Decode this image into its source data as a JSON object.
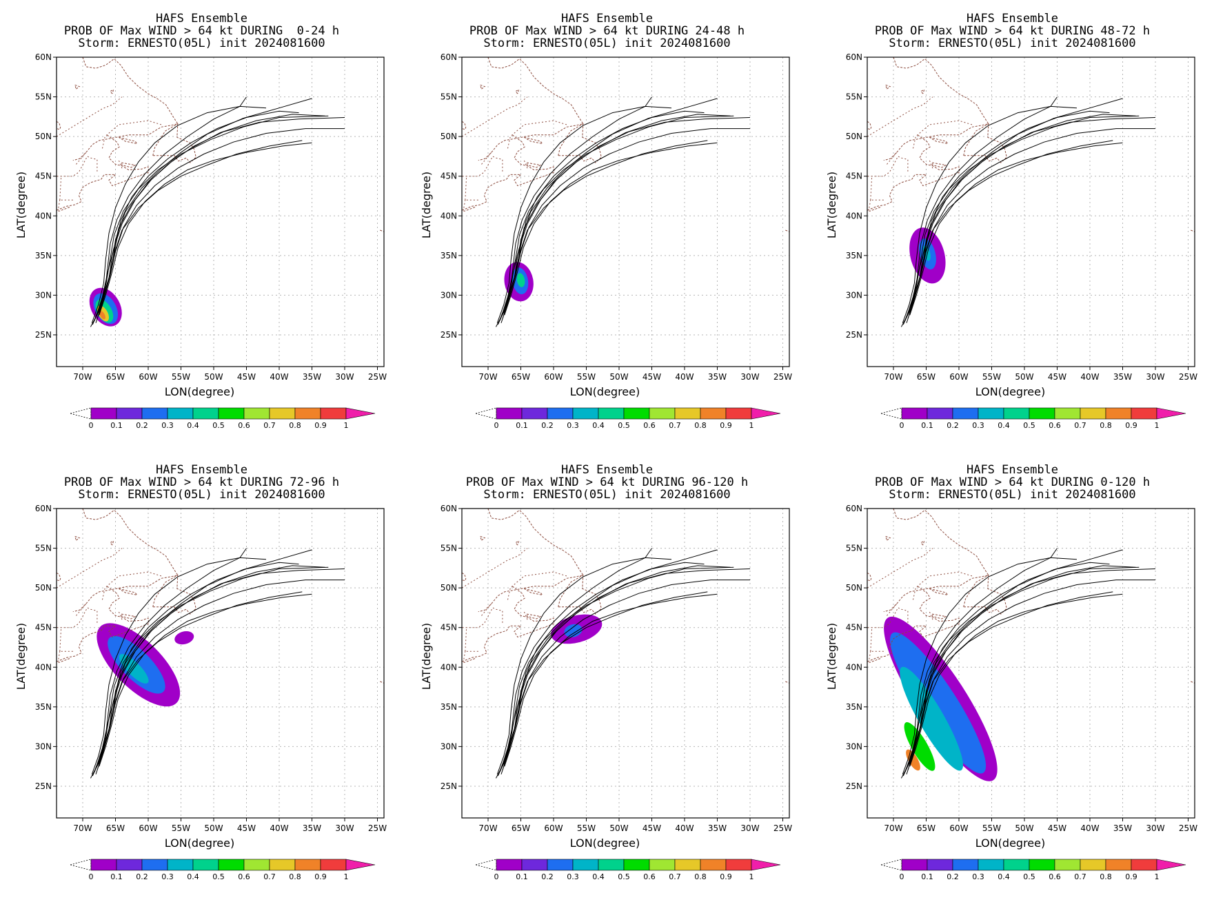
{
  "common": {
    "title_line1": "HAFS Ensemble",
    "title_line3": "Storm: ERNESTO(05L) init 2024081600",
    "xlabel": "LON(degree)",
    "ylabel": "LAT(degree)",
    "lon_ticks": [
      "70W",
      "65W",
      "60W",
      "55W",
      "50W",
      "45W",
      "40W",
      "35W",
      "30W",
      "25W"
    ],
    "lat_ticks": [
      "60N",
      "55N",
      "50N",
      "45N",
      "40N",
      "35N",
      "30N",
      "25N"
    ],
    "colorbar_ticks": [
      "0",
      "0.1",
      "0.2",
      "0.3",
      "0.4",
      "0.5",
      "0.6",
      "0.7",
      "0.8",
      "0.9",
      "1"
    ],
    "colorbar_colors": [
      "#a000c8",
      "#6e28dc",
      "#1e6ef0",
      "#00b4c8",
      "#00d28c",
      "#00dc00",
      "#a0e632",
      "#e6c828",
      "#f08228",
      "#f03c3c",
      "#f01eaa"
    ]
  },
  "panels": [
    {
      "title_line2": "PROB OF Max WIND > 64 kt DURING  0-24 h"
    },
    {
      "title_line2": "PROB OF Max WIND > 64 kt DURING 24-48 h"
    },
    {
      "title_line2": "PROB OF Max WIND > 64 kt DURING 48-72 h"
    },
    {
      "title_line2": "PROB OF Max WIND > 64 kt DURING 72-96 h"
    },
    {
      "title_line2": "PROB OF Max WIND > 64 kt DURING 96-120 h"
    },
    {
      "title_line2": "PROB OF Max WIND > 64 kt DURING 0-120 h"
    }
  ],
  "map_extent": {
    "lon_west": -74,
    "lon_east": -24,
    "lat_south": 21,
    "lat_north": 60
  },
  "prob_areas": [
    [
      {
        "lon": -66.5,
        "lat": 28.5,
        "rx": 2.2,
        "ry": 2.6,
        "rot": -30,
        "color": "#a000c8"
      },
      {
        "lon": -66.5,
        "lat": 28.3,
        "rx": 1.6,
        "ry": 2.1,
        "rot": -30,
        "color": "#1e6ef0"
      },
      {
        "lon": -66.7,
        "lat": 28.0,
        "rx": 1.1,
        "ry": 1.6,
        "rot": -30,
        "color": "#00d28c"
      },
      {
        "lon": -66.9,
        "lat": 27.7,
        "rx": 0.7,
        "ry": 1.1,
        "rot": -30,
        "color": "#e6c828"
      },
      {
        "lon": -67.0,
        "lat": 27.5,
        "rx": 0.35,
        "ry": 0.6,
        "rot": -30,
        "color": "#f08228"
      }
    ],
    [
      {
        "lon": -65.3,
        "lat": 31.7,
        "rx": 2.2,
        "ry": 2.5,
        "rot": -10,
        "color": "#a000c8"
      },
      {
        "lon": -65.1,
        "lat": 31.8,
        "rx": 1.2,
        "ry": 1.7,
        "rot": -10,
        "color": "#1e6ef0"
      },
      {
        "lon": -65.0,
        "lat": 31.9,
        "rx": 0.6,
        "ry": 0.9,
        "rot": -10,
        "color": "#00d28c"
      }
    ],
    [
      {
        "lon": -64.8,
        "lat": 35.0,
        "rx": 2.6,
        "ry": 3.6,
        "rot": -15,
        "color": "#a000c8"
      },
      {
        "lon": -64.8,
        "lat": 35.2,
        "rx": 1.2,
        "ry": 2.0,
        "rot": -15,
        "color": "#1e6ef0"
      },
      {
        "lon": -64.9,
        "lat": 35.3,
        "rx": 0.5,
        "ry": 1.0,
        "rot": -15,
        "color": "#00b4c8"
      }
    ],
    [
      {
        "lon": -61.5,
        "lat": 40.3,
        "rx": 3.6,
        "ry": 6.8,
        "rot": -45,
        "color": "#a000c8"
      },
      {
        "lon": -61.8,
        "lat": 40.3,
        "rx": 2.2,
        "ry": 4.8,
        "rot": -45,
        "color": "#1e6ef0"
      },
      {
        "lon": -62.2,
        "lat": 39.8,
        "rx": 1.0,
        "ry": 2.5,
        "rot": -45,
        "color": "#00b4c8"
      },
      {
        "lon": -54.5,
        "lat": 43.7,
        "rx": 1.5,
        "ry": 0.8,
        "rot": -15,
        "color": "#a000c8"
      }
    ],
    [
      {
        "lon": -56.5,
        "lat": 44.8,
        "rx": 4.0,
        "ry": 1.7,
        "rot": -15,
        "color": "#a000c8"
      },
      {
        "lon": -57.0,
        "lat": 44.6,
        "rx": 1.4,
        "ry": 0.8,
        "rot": -15,
        "color": "#1e6ef0"
      }
    ],
    [
      {
        "lon": -62.8,
        "lat": 36.0,
        "rx": 3.8,
        "ry": 12.2,
        "rot": -33,
        "color": "#a000c8"
      },
      {
        "lon": -63.2,
        "lat": 35.5,
        "rx": 2.8,
        "ry": 10.5,
        "rot": -33,
        "color": "#1e6ef0"
      },
      {
        "lon": -64.2,
        "lat": 33.5,
        "rx": 1.9,
        "ry": 7.5,
        "rot": -30,
        "color": "#00b4c8"
      },
      {
        "lon": -66.0,
        "lat": 30.0,
        "rx": 1.2,
        "ry": 3.5,
        "rot": -30,
        "color": "#00dc00"
      },
      {
        "lon": -67.0,
        "lat": 28.3,
        "rx": 0.7,
        "ry": 1.5,
        "rot": -30,
        "color": "#f08228"
      }
    ]
  ],
  "tracks": [
    [
      [
        -68.5,
        26.3
      ],
      [
        -67.3,
        28.5
      ],
      [
        -66.3,
        31.0
      ],
      [
        -65.5,
        33.8
      ],
      [
        -65.0,
        37.0
      ],
      [
        -63.5,
        40.5
      ],
      [
        -61.0,
        43.5
      ],
      [
        -58.0,
        46.0
      ],
      [
        -55.0,
        48.0
      ],
      [
        -51.0,
        50.3
      ],
      [
        -45.5,
        52.3
      ],
      [
        -40.0,
        53.6
      ],
      [
        -35.0,
        54.8
      ]
    ],
    [
      [
        -68.0,
        26.5
      ],
      [
        -67.0,
        29.0
      ],
      [
        -66.0,
        32.0
      ],
      [
        -65.5,
        35.0
      ],
      [
        -64.5,
        38.5
      ],
      [
        -62.5,
        41.5
      ],
      [
        -60.0,
        44.2
      ],
      [
        -57.0,
        46.5
      ],
      [
        -53.5,
        48.5
      ],
      [
        -49.0,
        50.5
      ],
      [
        -43.5,
        52.0
      ],
      [
        -38.0,
        52.8
      ],
      [
        -33.0,
        52.6
      ]
    ],
    [
      [
        -68.8,
        26.0
      ],
      [
        -67.5,
        28.0
      ],
      [
        -66.6,
        30.5
      ],
      [
        -66.2,
        33.5
      ],
      [
        -65.8,
        36.5
      ],
      [
        -64.8,
        39.5
      ],
      [
        -63.0,
        42.5
      ],
      [
        -60.5,
        45.3
      ],
      [
        -57.5,
        47.8
      ],
      [
        -54.0,
        50.0
      ],
      [
        -50.0,
        52.2
      ],
      [
        -46.0,
        53.8
      ],
      [
        -45.0,
        55.0
      ]
    ],
    [
      [
        -67.8,
        27.0
      ],
      [
        -66.8,
        29.5
      ],
      [
        -65.8,
        32.5
      ],
      [
        -65.0,
        35.5
      ],
      [
        -63.8,
        38.5
      ],
      [
        -61.8,
        41.3
      ],
      [
        -59.0,
        43.8
      ],
      [
        -55.5,
        46.0
      ],
      [
        -51.5,
        47.8
      ],
      [
        -47.0,
        49.3
      ],
      [
        -42.0,
        50.4
      ],
      [
        -36.0,
        51.0
      ],
      [
        -30.0,
        51.0
      ]
    ],
    [
      [
        -68.2,
        26.8
      ],
      [
        -67.2,
        29.0
      ],
      [
        -66.4,
        31.6
      ],
      [
        -65.8,
        34.6
      ],
      [
        -65.2,
        37.6
      ],
      [
        -63.8,
        40.6
      ],
      [
        -61.5,
        43.4
      ],
      [
        -58.5,
        45.8
      ],
      [
        -55.0,
        47.8
      ],
      [
        -50.5,
        49.6
      ],
      [
        -45.5,
        51.2
      ],
      [
        -40.0,
        52.4
      ],
      [
        -32.5,
        52.6
      ]
    ],
    [
      [
        -67.5,
        27.5
      ],
      [
        -66.5,
        30.0
      ],
      [
        -65.5,
        33.0
      ],
      [
        -64.6,
        36.0
      ],
      [
        -63.0,
        39.0
      ],
      [
        -60.5,
        41.8
      ],
      [
        -57.5,
        44.0
      ],
      [
        -54.0,
        45.8
      ],
      [
        -50.0,
        47.0
      ],
      [
        -45.0,
        48.0
      ],
      [
        -39.5,
        48.8
      ],
      [
        -35.0,
        49.2
      ]
    ],
    [
      [
        -68.6,
        26.5
      ],
      [
        -67.6,
        28.8
      ],
      [
        -66.8,
        31.5
      ],
      [
        -66.5,
        34.5
      ],
      [
        -66.0,
        37.8
      ],
      [
        -65.0,
        41.0
      ],
      [
        -63.5,
        44.0
      ],
      [
        -61.5,
        46.8
      ],
      [
        -59.0,
        49.2
      ],
      [
        -55.5,
        51.4
      ],
      [
        -51.0,
        53.0
      ],
      [
        -46.0,
        53.8
      ],
      [
        -42.0,
        53.6
      ]
    ],
    [
      [
        -68.0,
        27.2
      ],
      [
        -67.0,
        29.8
      ],
      [
        -66.2,
        32.8
      ],
      [
        -65.3,
        35.8
      ],
      [
        -64.0,
        39.0
      ],
      [
        -62.0,
        42.0
      ],
      [
        -59.5,
        44.6
      ],
      [
        -56.5,
        46.8
      ],
      [
        -53.0,
        48.8
      ],
      [
        -48.5,
        50.6
      ],
      [
        -43.0,
        51.8
      ],
      [
        -37.0,
        52.2
      ],
      [
        -30.0,
        52.4
      ]
    ],
    [
      [
        -67.6,
        27.8
      ],
      [
        -66.6,
        30.2
      ],
      [
        -65.7,
        33.0
      ],
      [
        -65.0,
        36.2
      ],
      [
        -64.2,
        39.4
      ],
      [
        -62.5,
        42.4
      ],
      [
        -60.0,
        45.0
      ],
      [
        -57.0,
        47.2
      ],
      [
        -53.5,
        49.2
      ],
      [
        -49.5,
        51.0
      ],
      [
        -45.0,
        52.4
      ],
      [
        -40.0,
        53.2
      ],
      [
        -37.0,
        53.0
      ]
    ],
    [
      [
        -68.3,
        26.7
      ],
      [
        -67.1,
        29.3
      ],
      [
        -66.0,
        32.2
      ],
      [
        -65.2,
        35.2
      ],
      [
        -64.0,
        38.2
      ],
      [
        -61.5,
        41.0
      ],
      [
        -58.5,
        43.2
      ],
      [
        -55.0,
        45.0
      ],
      [
        -51.0,
        46.4
      ],
      [
        -46.5,
        47.8
      ],
      [
        -41.5,
        48.8
      ],
      [
        -36.5,
        49.5
      ]
    ]
  ],
  "coast_lines": [
    [
      [
        -70.0,
        60.0
      ],
      [
        -69.5,
        58.8
      ],
      [
        -68.0,
        58.6
      ],
      [
        -66.5,
        59.0
      ],
      [
        -65.2,
        59.8
      ],
      [
        -64.2,
        59.0
      ],
      [
        -63.0,
        57.5
      ],
      [
        -61.5,
        56.3
      ],
      [
        -60.0,
        55.4
      ],
      [
        -58.5,
        54.7
      ],
      [
        -57.3,
        54.0
      ],
      [
        -56.2,
        52.5
      ],
      [
        -55.5,
        51.6
      ],
      [
        -56.6,
        51.4
      ],
      [
        -58.0,
        51.2
      ],
      [
        -60.0,
        50.2
      ],
      [
        -63.0,
        50.2
      ],
      [
        -65.5,
        49.8
      ],
      [
        -67.5,
        49.5
      ],
      [
        -68.5,
        49.0
      ],
      [
        -69.5,
        48.0
      ],
      [
        -70.5,
        47.2
      ],
      [
        -71.5,
        47.0
      ]
    ],
    [
      [
        -66.3,
        50.2
      ],
      [
        -64.8,
        49.3
      ],
      [
        -64.4,
        48.7
      ],
      [
        -65.5,
        48.1
      ],
      [
        -66.0,
        47.3
      ],
      [
        -65.0,
        46.5
      ],
      [
        -64.0,
        46.3
      ],
      [
        -63.0,
        45.8
      ],
      [
        -61.0,
        45.9
      ],
      [
        -60.0,
        46.2
      ],
      [
        -59.9,
        45.5
      ],
      [
        -61.5,
        45.0
      ],
      [
        -63.5,
        44.4
      ],
      [
        -65.5,
        43.8
      ],
      [
        -66.0,
        44.5
      ],
      [
        -65.0,
        45.2
      ],
      [
        -66.7,
        45.2
      ],
      [
        -67.2,
        44.6
      ],
      [
        -68.8,
        44.2
      ],
      [
        -70.0,
        43.6
      ],
      [
        -70.6,
        42.6
      ],
      [
        -70.2,
        41.8
      ],
      [
        -71.2,
        41.4
      ],
      [
        -72.5,
        41.2
      ],
      [
        -74.0,
        40.7
      ]
    ],
    [
      [
        -59.3,
        47.6
      ],
      [
        -59.0,
        48.6
      ],
      [
        -57.4,
        50.7
      ],
      [
        -55.5,
        51.6
      ],
      [
        -55.6,
        49.9
      ],
      [
        -53.6,
        49.2
      ],
      [
        -53.0,
        48.4
      ],
      [
        -52.7,
        47.4
      ],
      [
        -53.6,
        46.7
      ],
      [
        -54.2,
        47.3
      ],
      [
        -55.4,
        46.9
      ],
      [
        -56.0,
        47.6
      ],
      [
        -59.3,
        47.6
      ]
    ],
    [
      [
        -64.1,
        46.7
      ],
      [
        -62.0,
        46.4
      ],
      [
        -62.6,
        46.1
      ],
      [
        -64.0,
        46.4
      ],
      [
        -64.1,
        46.7
      ]
    ],
    [
      [
        -64.5,
        49.9
      ],
      [
        -62.0,
        49.4
      ],
      [
        -61.7,
        49.1
      ],
      [
        -63.5,
        49.4
      ],
      [
        -64.5,
        49.9
      ]
    ],
    [
      [
        -72.0,
        41.1
      ],
      [
        -73.6,
        40.6
      ],
      [
        -74.0,
        40.7
      ]
    ],
    [
      [
        -74.0,
        51.9
      ],
      [
        -73.6,
        51.7
      ],
      [
        -73.4,
        51.2
      ],
      [
        -73.5,
        50.9
      ],
      [
        -74.0,
        51.0
      ]
    ],
    [
      [
        -65.5,
        55.4
      ],
      [
        -65.8,
        55.7
      ],
      [
        -65.3,
        55.9
      ],
      [
        -65.5,
        55.4
      ]
    ],
    [
      [
        -71.0,
        56.0
      ],
      [
        -70.5,
        56.3
      ],
      [
        -71.2,
        56.5
      ],
      [
        -71.0,
        56.0
      ]
    ],
    [
      [
        -24.6,
        38.2
      ],
      [
        -24.0,
        38.0
      ]
    ]
  ],
  "border_lines": [
    [
      [
        -67.8,
        45.6
      ],
      [
        -67.8,
        47.1
      ],
      [
        -68.8,
        47.3
      ],
      [
        -69.3,
        47.5
      ],
      [
        -70.6,
        45.5
      ],
      [
        -71.5,
        45.0
      ],
      [
        -74.0,
        45.0
      ]
    ],
    [
      [
        -64.0,
        46.0
      ],
      [
        -64.5,
        47.0
      ]
    ],
    [
      [
        -73.5,
        42.0
      ],
      [
        -73.3,
        45.0
      ]
    ],
    [
      [
        -71.5,
        42.0
      ],
      [
        -73.5,
        42.0
      ]
    ],
    [
      [
        -73.7,
        41.0
      ],
      [
        -73.5,
        42.0
      ]
    ],
    [
      [
        -67.0,
        48.5
      ],
      [
        -66.6,
        50.0
      ],
      [
        -64.5,
        51.5
      ],
      [
        -60.0,
        52.0
      ],
      [
        -58.0,
        51.5
      ]
    ],
    [
      [
        -74.0,
        50.0
      ],
      [
        -72.0,
        51.0
      ],
      [
        -69.0,
        52.5
      ],
      [
        -67.0,
        53.5
      ],
      [
        -65.5,
        54.0
      ],
      [
        -64.0,
        55.0
      ]
    ],
    [
      [
        -71.0,
        46.5
      ],
      [
        -69.5,
        48.0
      ]
    ]
  ]
}
